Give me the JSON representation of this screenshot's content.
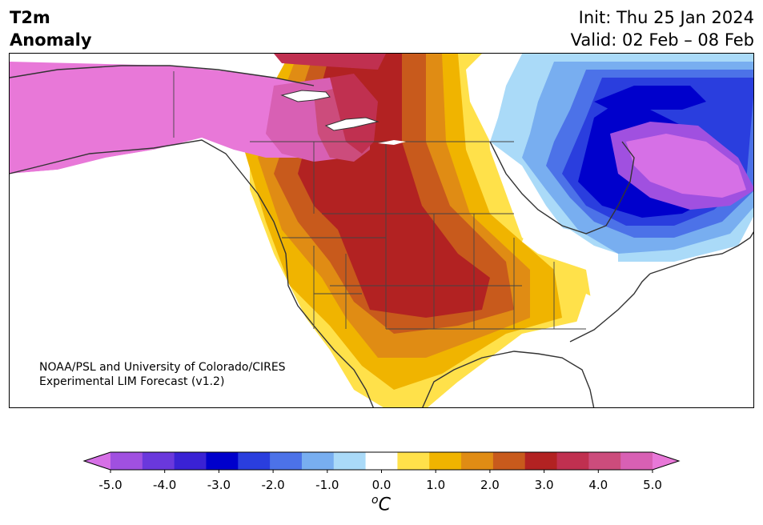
{
  "header": {
    "title_line1": "T2m",
    "title_line2": "Anomaly",
    "init": "Init: Thu 25 Jan 2024",
    "valid": "Valid: 02 Feb – 08 Feb"
  },
  "credit": {
    "line1": "NOAA/PSL and University of Colorado/CIRES",
    "line2": "Experimental LIM Forecast (v1.2)"
  },
  "colorbar": {
    "colors": [
      "#d670e6",
      "#a050e0",
      "#6a38dc",
      "#3a22d4",
      "#0000cc",
      "#2a3ede",
      "#4c72e8",
      "#78aef0",
      "#aadaf8",
      "#ffffff",
      "#ffe14a",
      "#f0b400",
      "#e08c14",
      "#c85a1c",
      "#b22222",
      "#c03050",
      "#cc4c7c",
      "#d860b4",
      "#e878d8"
    ],
    "ticks": [
      "-5.0",
      "-4.0",
      "-3.0",
      "-2.0",
      "-1.0",
      "0.0",
      "1.0",
      "2.0",
      "3.0",
      "4.0",
      "5.0"
    ],
    "unit_base": "C",
    "unit_sup": "o"
  }
}
